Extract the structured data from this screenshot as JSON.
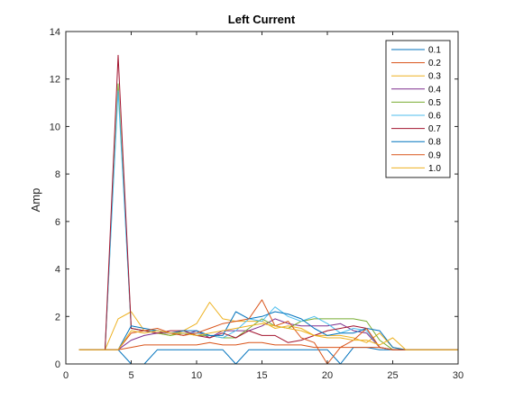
{
  "chart_data": {
    "type": "line",
    "title": "Left Current",
    "xlabel": "",
    "ylabel": "Amp",
    "xlim": [
      0,
      30
    ],
    "ylim": [
      0,
      14
    ],
    "xticks": [
      0,
      5,
      10,
      15,
      20,
      25,
      30
    ],
    "yticks": [
      0,
      2,
      4,
      6,
      8,
      10,
      12,
      14
    ],
    "grid": false,
    "legend_position": "top-right",
    "x": [
      1,
      2,
      3,
      4,
      5,
      6,
      7,
      8,
      9,
      10,
      11,
      12,
      13,
      14,
      15,
      16,
      17,
      18,
      19,
      20,
      21,
      22,
      23,
      24,
      25,
      26,
      27,
      28,
      29,
      30
    ],
    "series": [
      {
        "name": "0.1",
        "color": "#0072BD",
        "values": [
          0.6,
          0.6,
          0.6,
          0.6,
          0,
          0,
          0.6,
          0.6,
          0.6,
          0.6,
          0.6,
          0.6,
          0,
          0.6,
          0.6,
          0.6,
          0.6,
          0.6,
          0.6,
          0.6,
          0,
          0.7,
          0.7,
          0.6,
          0.6,
          0.6,
          0.6,
          0.6,
          0.6,
          0.6
        ]
      },
      {
        "name": "0.2",
        "color": "#D95319",
        "values": [
          0.6,
          0.6,
          0.6,
          0.6,
          0.7,
          0.8,
          0.8,
          0.8,
          0.8,
          0.8,
          0.9,
          0.8,
          0.8,
          0.9,
          0.9,
          0.8,
          0.8,
          0.8,
          0.7,
          0.7,
          0.7,
          0.7,
          0.7,
          0.7,
          0.6,
          0.6,
          0.6,
          0.6,
          0.6,
          0.6
        ]
      },
      {
        "name": "0.3",
        "color": "#EDB120",
        "values": [
          0.6,
          0.6,
          0.6,
          1.9,
          2.2,
          1.4,
          1.3,
          1.2,
          1.4,
          1.7,
          2.6,
          1.9,
          1.8,
          1.8,
          1.8,
          1.5,
          1.6,
          1.5,
          1.2,
          1.2,
          1.2,
          1.1,
          0.9,
          1.3,
          0.7,
          0.6,
          0.6,
          0.6,
          0.6,
          0.6
        ]
      },
      {
        "name": "0.4",
        "color": "#7E2F8E",
        "values": [
          0.6,
          0.6,
          0.6,
          0.6,
          1.0,
          1.2,
          1.3,
          1.3,
          1.2,
          1.4,
          1.1,
          1.4,
          1.4,
          1.4,
          1.6,
          1.9,
          1.7,
          1.6,
          1.6,
          1.6,
          1.7,
          1.4,
          1.3,
          0.7,
          0.6,
          0.6,
          0.6,
          0.6,
          0.6,
          0.6
        ]
      },
      {
        "name": "0.5",
        "color": "#77AC30",
        "values": [
          0.6,
          0.6,
          0.6,
          11.8,
          1.5,
          1.4,
          1.3,
          1.2,
          1.3,
          1.2,
          1.2,
          1.1,
          1.1,
          1.5,
          1.9,
          1.6,
          1.5,
          1.8,
          1.9,
          1.9,
          1.9,
          1.9,
          1.8,
          1.0,
          0.6,
          0.6,
          0.6,
          0.6,
          0.6,
          0.6
        ]
      },
      {
        "name": "0.6",
        "color": "#4DBEEE",
        "values": [
          0.6,
          0.6,
          0.6,
          11.5,
          1.5,
          1.4,
          1.4,
          1.3,
          1.3,
          1.3,
          1.2,
          1.1,
          1.4,
          1.9,
          1.8,
          2.4,
          2.0,
          1.8,
          2.0,
          1.7,
          1.3,
          1.5,
          1.4,
          0.7,
          0.6,
          0.6,
          0.6,
          0.6,
          0.6,
          0.6
        ]
      },
      {
        "name": "0.7",
        "color": "#A2142F",
        "values": [
          0.6,
          0.6,
          0.6,
          13.0,
          1.5,
          1.4,
          1.3,
          1.4,
          1.4,
          1.2,
          1.1,
          1.3,
          1.1,
          1.4,
          1.2,
          1.2,
          0.9,
          1.0,
          1.2,
          1.4,
          1.5,
          1.6,
          1.5,
          0.7,
          0.6,
          0.6,
          0.6,
          0.6,
          0.6,
          0.6
        ]
      },
      {
        "name": "0.8",
        "color": "#0072BD",
        "values": [
          0.6,
          0.6,
          0.6,
          0.6,
          1.6,
          1.5,
          1.4,
          1.3,
          1.4,
          1.4,
          1.2,
          1.2,
          2.2,
          1.9,
          2.0,
          2.2,
          2.1,
          1.9,
          1.5,
          1.2,
          1.3,
          1.3,
          1.5,
          1.4,
          0.7,
          0.6,
          0.6,
          0.6,
          0.6,
          0.6
        ]
      },
      {
        "name": "0.9",
        "color": "#D95319",
        "values": [
          0.6,
          0.6,
          0.6,
          0.6,
          1.3,
          1.4,
          1.5,
          1.3,
          1.2,
          1.3,
          1.5,
          1.7,
          1.8,
          1.9,
          2.7,
          1.6,
          1.8,
          1.1,
          0.9,
          0,
          0.7,
          1.0,
          1.5,
          0.7,
          0.6,
          0.6,
          0.6,
          0.6,
          0.6,
          0.6
        ]
      },
      {
        "name": "1.0",
        "color": "#EDB120",
        "values": [
          0.6,
          0.6,
          0.6,
          0.6,
          1.4,
          1.3,
          1.4,
          1.3,
          1.3,
          1.2,
          1.3,
          1.4,
          1.5,
          1.6,
          1.7,
          1.6,
          1.5,
          1.4,
          1.2,
          1.1,
          1.1,
          1.0,
          1.0,
          0.8,
          1.1,
          0.6,
          0.6,
          0.6,
          0.6,
          0.6
        ]
      }
    ]
  }
}
